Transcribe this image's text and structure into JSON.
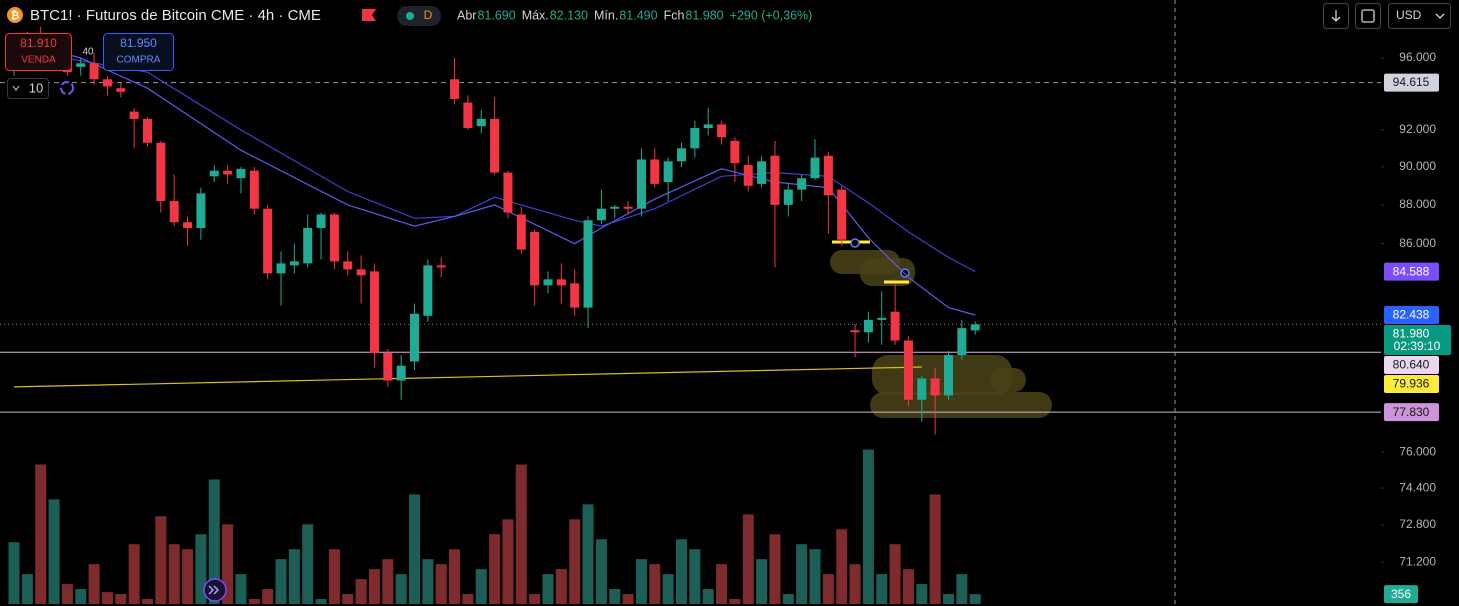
{
  "header": {
    "symbol": "BTC1! · Futuros de Bitcoin CME · 4h · CME",
    "badge": "D",
    "stats": [
      {
        "label": "Abr",
        "value": "81.690"
      },
      {
        "label": "Máx.",
        "value": "82.130"
      },
      {
        "label": "Mín.",
        "value": "81.490"
      },
      {
        "label": "Fch",
        "value": "81.980"
      }
    ],
    "change": "+290 (+0,36%)"
  },
  "trade": {
    "sell_price": "81.910",
    "sell": "VENDA",
    "spread": "40",
    "buy_price": "81.950",
    "buy": "COMPRA",
    "quantity": "10"
  },
  "toolbar": {
    "currency": "USD"
  },
  "chart_data": {
    "type": "candlestick",
    "log_scale": true,
    "ylim": [
      69380,
      99360
    ],
    "yticks": [
      {
        "value": 96000,
        "label": "96.000"
      },
      {
        "value": 92000,
        "label": "92.000"
      },
      {
        "value": 90000,
        "label": "90.000"
      },
      {
        "value": 88000,
        "label": "88.000"
      },
      {
        "value": 86000,
        "label": "86.000"
      },
      {
        "value": 76000,
        "label": "76.000"
      },
      {
        "value": 74400,
        "label": "74.400"
      },
      {
        "value": 72800,
        "label": "72.800"
      },
      {
        "value": 71200,
        "label": "71.200"
      }
    ],
    "up_color": "#22ab94",
    "down_color": "#f23645",
    "volume_up_color": "#1d5e57",
    "volume_down_color": "#7e2b2d",
    "volume_lim": [
      0,
      5600
    ],
    "open": [
      95500,
      96500,
      97200,
      95800,
      95900,
      95500,
      95700,
      94800,
      94300,
      93000,
      92600,
      91300,
      88200,
      87100,
      86800,
      89500,
      89800,
      89400,
      89800,
      87800,
      84500,
      84900,
      85000,
      86800,
      87500,
      85100,
      84700,
      84600,
      80600,
      79300,
      80200,
      82400,
      84900,
      94800,
      93500,
      92200,
      92600,
      89700,
      87500,
      86600,
      83900,
      84200,
      84000,
      82800,
      87200,
      87800,
      87900,
      87800,
      90400,
      89200,
      90300,
      91000,
      92100,
      92300,
      91400,
      90100,
      89100,
      90600,
      88000,
      88800,
      89400,
      90600,
      88800,
      81700,
      81600,
      82200,
      82600,
      81200,
      78400,
      79400,
      78600,
      80500,
      81690
    ],
    "high": [
      97000,
      97500,
      97800,
      96200,
      96500,
      96000,
      96300,
      95000,
      94600,
      93200,
      92700,
      91400,
      89600,
      87400,
      88900,
      90100,
      90100,
      90000,
      90000,
      88000,
      85600,
      86000,
      87500,
      87600,
      87600,
      85600,
      85400,
      85000,
      80800,
      80500,
      83000,
      85200,
      85300,
      96000,
      93900,
      93100,
      93800,
      89800,
      87900,
      86700,
      84600,
      85000,
      84700,
      87400,
      88800,
      88000,
      88200,
      91000,
      91000,
      90500,
      91300,
      92500,
      93200,
      92500,
      91600,
      90600,
      90600,
      91400,
      89100,
      89600,
      91500,
      90800,
      89000,
      82000,
      82600,
      83600,
      84000,
      81400,
      79500,
      79900,
      80700,
      82200,
      82130
    ],
    "low": [
      95000,
      96000,
      95400,
      95500,
      95000,
      95000,
      94500,
      93900,
      93800,
      91000,
      91100,
      87600,
      86900,
      85900,
      86200,
      89200,
      89100,
      88600,
      87500,
      84200,
      82900,
      84500,
      84800,
      85200,
      84700,
      84400,
      83000,
      79900,
      79000,
      78400,
      79800,
      82100,
      84300,
      93400,
      92000,
      91800,
      89600,
      87300,
      85500,
      82900,
      83500,
      83000,
      82400,
      81800,
      87000,
      87300,
      87500,
      87400,
      88900,
      88200,
      90000,
      90500,
      91700,
      91200,
      89200,
      88700,
      88900,
      84800,
      87400,
      88200,
      89300,
      86500,
      85900,
      80400,
      81100,
      81000,
      81000,
      78100,
      77400,
      76800,
      78400,
      80300,
      81490
    ],
    "close": [
      96500,
      97000,
      95800,
      95900,
      95200,
      95700,
      94800,
      94400,
      94100,
      92600,
      91300,
      88200,
      87100,
      86800,
      88600,
      89800,
      89600,
      89900,
      87800,
      84500,
      85000,
      85100,
      86800,
      87500,
      85100,
      84700,
      84400,
      80600,
      79300,
      80000,
      82500,
      84900,
      84800,
      93700,
      92100,
      92600,
      89700,
      87600,
      85700,
      83900,
      84200,
      83900,
      82800,
      87200,
      87800,
      87900,
      87800,
      90400,
      89100,
      90300,
      91000,
      92100,
      92300,
      91600,
      90200,
      89000,
      90300,
      88000,
      88800,
      89400,
      90500,
      88500,
      86200,
      81600,
      82200,
      82300,
      81200,
      78400,
      79400,
      78600,
      80500,
      81800,
      81980
    ],
    "volume": [
      2230,
      1080,
      5040,
      3780,
      720,
      540,
      1440,
      430,
      360,
      2160,
      180,
      3170,
      2160,
      1980,
      2520,
      4500,
      2880,
      1080,
      180,
      540,
      1620,
      1980,
      2880,
      180,
      1980,
      360,
      900,
      1260,
      1620,
      1080,
      3960,
      1620,
      1440,
      1980,
      360,
      1260,
      2520,
      3060,
      5040,
      360,
      1080,
      1260,
      3060,
      3600,
      2340,
      540,
      360,
      1620,
      1440,
      1080,
      2340,
      1980,
      540,
      1440,
      180,
      3240,
      1620,
      2520,
      360,
      2160,
      1980,
      1080,
      2700,
      1440,
      5580,
      1080,
      2160,
      1260,
      720,
      3960,
      360,
      1080,
      356
    ],
    "lines": [
      {
        "color": "#3f3fd6",
        "x": [
          0,
          10,
          17,
          25,
          30,
          33,
          36,
          42,
          44,
          48,
          53,
          57,
          61,
          64,
          67,
          70,
          72
        ],
        "values": [
          96500,
          95200,
          92000,
          88700,
          87300,
          87400,
          88400,
          87200,
          86900,
          87800,
          89500,
          89700,
          89500,
          88100,
          86600,
          85300,
          84588
        ]
      },
      {
        "color": "#5a5af0",
        "x": [
          0,
          5,
          10,
          17,
          25,
          30,
          33,
          36,
          42,
          44,
          48,
          53,
          57,
          61,
          64,
          67,
          70,
          72
        ],
        "values": [
          97000,
          96000,
          94300,
          90900,
          88000,
          86900,
          87400,
          88000,
          86000,
          86800,
          88300,
          89900,
          89200,
          88900,
          86300,
          84300,
          82800,
          82438
        ]
      },
      {
        "color": "#d4c21f",
        "x": [
          0,
          68
        ],
        "values": [
          79000,
          79936
        ]
      }
    ],
    "markers": [
      {
        "value": 94615,
        "label": "94.615",
        "bg": "#d1d4dc",
        "fg": "#131722",
        "line": "dashed"
      },
      {
        "value": 84588,
        "label": "84.588",
        "bg": "#7c4dff",
        "fg": "#ffffff"
      },
      {
        "value": 82438,
        "label": "82.438",
        "bg": "#2962ff",
        "fg": "#ffffff"
      },
      {
        "value": 81980,
        "label": "81.980",
        "sublabel": "02:39:10",
        "bg": "#089981",
        "fg": "#ffffff",
        "line": "dotted"
      },
      {
        "value": 80640,
        "label": "80.640",
        "bg": "#ecd7ee",
        "fg": "#131722",
        "line": "solid"
      },
      {
        "value": 79936,
        "label": "79.936",
        "bg": "#ffeb3b",
        "fg": "#131722"
      },
      {
        "value": 77830,
        "label": "77.830",
        "bg": "#ce93d8",
        "fg": "#131722",
        "line": "solid"
      }
    ]
  }
}
